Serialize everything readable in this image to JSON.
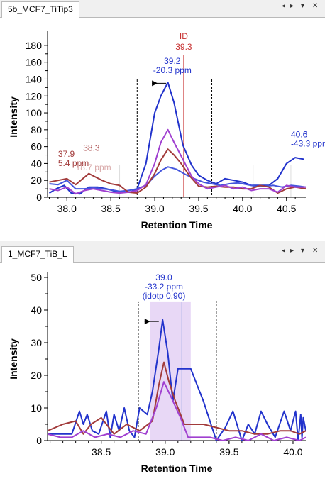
{
  "panes": [
    {
      "tab_label": "5b_MCF7_TiTip3",
      "tab_controls": [
        "◂",
        "▸",
        "▾",
        "✕"
      ],
      "chart_data": {
        "type": "line",
        "xlabel": "Retention Time",
        "ylabel": "Intensity",
        "xlim": [
          37.78,
          40.72
        ],
        "ylim": [
          0,
          190
        ],
        "xticks": [
          "38.0",
          "38.5",
          "39.0",
          "39.5",
          "40.0",
          "40.5"
        ],
        "xtick_values": [
          38.0,
          38.5,
          39.0,
          39.5,
          40.0,
          40.5
        ],
        "yticks": [
          "0",
          "20",
          "40",
          "60",
          "80",
          "100",
          "120",
          "140",
          "160",
          "180"
        ],
        "ytick_values": [
          0,
          20,
          40,
          60,
          80,
          100,
          120,
          140,
          160,
          180
        ],
        "boundaries": [
          38.8,
          39.65
        ],
        "id_line": {
          "x": 39.33,
          "label": "ID",
          "value": "39.3",
          "color": "#c83232"
        },
        "thin_markers": [
          38.6,
          40.12,
          40.55
        ],
        "series": [
          {
            "color": "#2233cc",
            "x": [
              37.8,
              37.88,
              37.97,
              38.05,
              38.15,
              38.25,
              38.35,
              38.45,
              38.55,
              38.65,
              38.72,
              38.8,
              38.9,
              39.0,
              39.07,
              39.15,
              39.22,
              39.32,
              39.42,
              39.5,
              39.6,
              39.7,
              39.8,
              39.9,
              40.0,
              40.1,
              40.2,
              40.3,
              40.4,
              40.5,
              40.6,
              40.7
            ],
            "y": [
              5,
              10,
              14,
              5,
              4,
              12,
              12,
              10,
              7,
              6,
              6,
              10,
              40,
              100,
              120,
              136,
              112,
              62,
              38,
              26,
              20,
              16,
              22,
              20,
              18,
              14,
              14,
              14,
              22,
              40,
              47,
              45
            ]
          },
          {
            "color": "#4455dd",
            "x": [
              37.8,
              37.9,
              38.0,
              38.1,
              38.2,
              38.3,
              38.4,
              38.5,
              38.6,
              38.7,
              38.8,
              38.9,
              39.0,
              39.08,
              39.15,
              39.25,
              39.35,
              39.45,
              39.55,
              39.65,
              39.75,
              39.85,
              39.95,
              40.05,
              40.15,
              40.25,
              40.35,
              40.45,
              40.55,
              40.65,
              40.72
            ],
            "y": [
              16,
              15,
              20,
              10,
              10,
              11,
              10,
              9,
              7,
              8,
              10,
              14,
              25,
              32,
              36,
              33,
              27,
              22,
              18,
              16,
              14,
              16,
              17,
              15,
              13,
              13,
              14,
              12,
              14,
              13,
              12
            ]
          },
          {
            "color": "#a23b3b",
            "x": [
              37.8,
              37.9,
              38.0,
              38.1,
              38.25,
              38.4,
              38.5,
              38.6,
              38.7,
              38.8,
              38.9,
              39.0,
              39.07,
              39.15,
              39.22,
              39.3,
              39.4,
              39.5,
              39.6,
              39.7,
              39.8,
              39.9,
              40.0,
              40.1,
              40.2,
              40.3,
              40.4,
              40.5,
              40.6,
              40.72
            ],
            "y": [
              18,
              20,
              22,
              15,
              28,
              20,
              16,
              14,
              6,
              5,
              12,
              28,
              44,
              57,
              50,
              40,
              25,
              13,
              12,
              13,
              12,
              12,
              10,
              10,
              14,
              12,
              5,
              10,
              12,
              10
            ]
          },
          {
            "color": "#a040d0",
            "x": [
              37.8,
              37.9,
              38.0,
              38.1,
              38.2,
              38.3,
              38.4,
              38.5,
              38.6,
              38.7,
              38.8,
              38.9,
              39.0,
              39.07,
              39.15,
              39.22,
              39.32,
              39.42,
              39.5,
              39.6,
              39.7,
              39.8,
              39.9,
              40.0,
              40.1,
              40.2,
              40.3,
              40.4,
              40.5,
              40.6,
              40.72
            ],
            "y": [
              10,
              8,
              12,
              4,
              8,
              10,
              8,
              6,
              5,
              6,
              8,
              15,
              40,
              65,
              80,
              65,
              45,
              25,
              16,
              10,
              12,
              14,
              10,
              12,
              8,
              10,
              10,
              6,
              14,
              12,
              12
            ]
          }
        ],
        "annotations": [
          {
            "x": 37.9,
            "y": 37,
            "lines": [
              "37.9",
              "5.4 ppm"
            ],
            "color": "#a23b3b",
            "anchor": "start"
          },
          {
            "x": 38.28,
            "y": 44,
            "lines": [
              "38.3",
              ""
            ],
            "color": "#a23b3b",
            "anchor": "middle"
          },
          {
            "x": 38.1,
            "y": 32,
            "lines": [
              "18.7 ppm"
            ],
            "color": "#d8a8a8",
            "anchor": "start"
          },
          {
            "x": 39.2,
            "y": 147,
            "lines": [
              "39.2",
              "-20.3 ppm"
            ],
            "color": "#2233cc",
            "anchor": "middle"
          },
          {
            "x": 40.55,
            "y": 60,
            "lines": [
              "40.6",
              "-43.3 ppm"
            ],
            "color": "#2233cc",
            "anchor": "start"
          }
        ],
        "arrow": {
          "x": 39.13,
          "y": 135
        }
      }
    },
    {
      "tab_label": "1_MCF7_TiB_L",
      "tab_controls": [
        "◂",
        "▸",
        "▾",
        "✕"
      ],
      "chart_data": {
        "type": "line",
        "xlabel": "Retention Time",
        "ylabel": "Intensity",
        "xlim": [
          38.08,
          40.1
        ],
        "ylim": [
          0,
          50
        ],
        "xticks": [
          "38.5",
          "39.0",
          "39.5",
          "40.0"
        ],
        "xtick_values": [
          38.5,
          39.0,
          39.5,
          40.0
        ],
        "yticks": [
          "0",
          "10",
          "20",
          "30",
          "40",
          "50"
        ],
        "ytick_values": [
          0,
          10,
          20,
          30,
          40,
          50
        ],
        "boundaries": [
          38.79,
          39.4
        ],
        "highlight": {
          "x0": 38.88,
          "x1": 39.2,
          "color": "#e8d8f6"
        },
        "id_line": {
          "x": 39.13,
          "label": "",
          "value": "",
          "color": "#9aa8e0"
        },
        "thin_markers": [],
        "series": [
          {
            "color": "#2233cc",
            "x": [
              38.08,
              38.18,
              38.27,
              38.33,
              38.36,
              38.39,
              38.43,
              38.48,
              38.54,
              38.57,
              38.6,
              38.64,
              38.68,
              38.72,
              38.76,
              38.8,
              38.86,
              38.9,
              38.95,
              38.98,
              39.02,
              39.06,
              39.1,
              39.14,
              39.2,
              39.3,
              39.4,
              39.47,
              39.53,
              39.6,
              39.65,
              39.7,
              39.75,
              39.8,
              39.86,
              39.93,
              39.98,
              40.02,
              40.04,
              40.06,
              40.07,
              40.08,
              40.1
            ],
            "y": [
              2,
              2,
              2,
              9,
              5,
              8,
              3,
              2,
              9,
              1,
              8,
              3,
              10,
              3,
              1,
              10,
              8,
              15,
              28,
              37,
              27,
              12,
              22,
              22,
              22,
              12,
              0,
              4,
              9,
              0,
              5,
              2,
              9,
              5,
              1,
              9,
              3,
              9,
              0,
              8,
              1,
              7,
              3
            ]
          },
          {
            "color": "#a23b3b",
            "x": [
              38.08,
              38.2,
              38.3,
              38.36,
              38.42,
              38.5,
              38.6,
              38.7,
              38.8,
              38.9,
              38.95,
              38.99,
              39.03,
              39.08,
              39.15,
              39.22,
              39.3,
              39.4,
              39.5,
              39.6,
              39.7,
              39.8,
              39.9,
              39.98,
              40.05,
              40.1
            ],
            "y": [
              3,
              5,
              6,
              2,
              5,
              7,
              2,
              5,
              3,
              6,
              17,
              24,
              18,
              12,
              5,
              5,
              5,
              4,
              3,
              3,
              2,
              2,
              3,
              3,
              2,
              3
            ]
          },
          {
            "color": "#a040d0",
            "x": [
              38.08,
              38.18,
              38.27,
              38.36,
              38.45,
              38.55,
              38.65,
              38.75,
              38.85,
              38.93,
              38.99,
              39.05,
              39.12,
              39.18,
              39.25,
              39.35,
              39.45,
              39.55,
              39.65,
              39.75,
              39.85,
              39.95,
              40.05,
              40.1
            ],
            "y": [
              2,
              1,
              1,
              3,
              1,
              2,
              1,
              3,
              2,
              10,
              18,
              13,
              7,
              1,
              1,
              1,
              0,
              1,
              0,
              2,
              0,
              1,
              0,
              1
            ]
          }
        ],
        "annotations": [
          {
            "x": 38.99,
            "y": 43.5,
            "lines": [
              "39.0",
              "-33.2 ppm",
              "(idotp 0.90)"
            ],
            "color": "#2233cc",
            "anchor": "middle"
          }
        ],
        "arrow": {
          "x": 38.95,
          "y": 36.5
        }
      }
    }
  ]
}
